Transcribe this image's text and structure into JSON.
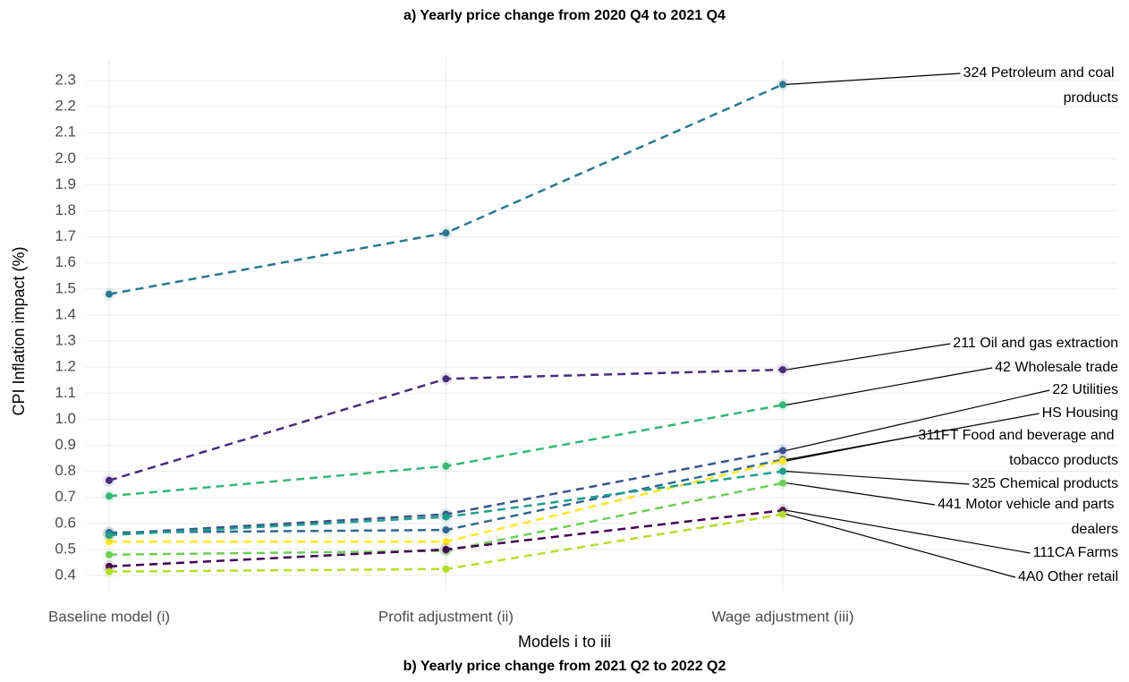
{
  "chart_data": {
    "type": "line",
    "title": "a) Yearly price change from 2020 Q4 to 2021 Q4",
    "subtitle": "b) Yearly price change from 2021 Q2 to 2022 Q2",
    "x_label": "Models i to iii",
    "y_label": "CPI Inflation impact (%)",
    "categories": [
      "Baseline model (i)",
      "Profit adjustment (ii)",
      "Wage adjustment (iii)"
    ],
    "ylim": [
      0.34,
      2.38
    ],
    "yticks": [
      {
        "value": 0.4,
        "label": "0.4"
      },
      {
        "value": 0.5,
        "label": "0.5"
      },
      {
        "value": 0.6,
        "label": "0.6"
      },
      {
        "value": 0.7,
        "label": "0.7"
      },
      {
        "value": 0.8,
        "label": "0.8"
      },
      {
        "value": 0.9,
        "label": "0.9"
      },
      {
        "value": 1.0,
        "label": "1.0"
      },
      {
        "value": 1.1,
        "label": "1.1"
      },
      {
        "value": 1.2,
        "label": "1.2"
      },
      {
        "value": 1.3,
        "label": "1.3"
      },
      {
        "value": 1.4,
        "label": "1.4"
      },
      {
        "value": 1.5,
        "label": "1.5"
      },
      {
        "value": 1.6,
        "label": "1.6"
      },
      {
        "value": 1.7,
        "label": "1.7"
      },
      {
        "value": 1.8,
        "label": "1.8"
      },
      {
        "value": 1.9,
        "label": "1.9"
      },
      {
        "value": 2.0,
        "label": "2.0"
      },
      {
        "value": 2.1,
        "label": "2.1"
      },
      {
        "value": 2.2,
        "label": "2.2"
      },
      {
        "value": 2.3,
        "label": "2.3"
      }
    ],
    "grid": true,
    "series": [
      {
        "name": "324 Petroleum and coal products",
        "color": "#2a788e",
        "values": [
          1.48,
          1.715,
          2.285
        ]
      },
      {
        "name": "211 Oil and gas extraction",
        "color": "#472d7b",
        "values": [
          0.765,
          1.155,
          1.19
        ]
      },
      {
        "name": "42 Wholesale trade",
        "color": "#35b779",
        "values": [
          0.705,
          0.82,
          1.055
        ]
      },
      {
        "name": "22 Utilities",
        "color": "#3b528b",
        "values": [
          0.56,
          0.635,
          0.88
        ]
      },
      {
        "name": "HS Housing",
        "color": "#31688e",
        "values": [
          0.565,
          0.575,
          0.845
        ]
      },
      {
        "name": "311FT Food and beverage and tobacco products",
        "color": "#fde725",
        "values": [
          0.53,
          0.53,
          0.84
        ]
      },
      {
        "name": "325 Chemical products",
        "color": "#1f9e89",
        "values": [
          0.555,
          0.625,
          0.8
        ]
      },
      {
        "name": "441 Motor vehicle and parts dealers",
        "color": "#6ece58",
        "values": [
          0.48,
          0.495,
          0.755
        ]
      },
      {
        "name": "111CA Farms",
        "color": "#440154",
        "values": [
          0.435,
          0.5,
          0.65
        ]
      },
      {
        "name": "4A0 Other retail",
        "color": "#b5de2b",
        "values": [
          0.415,
          0.425,
          0.635
        ]
      }
    ]
  }
}
